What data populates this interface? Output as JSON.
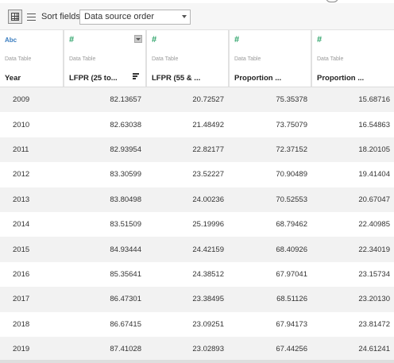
{
  "toolbar": {
    "sort_label": "Sort fields",
    "sort_value": "Data source order"
  },
  "columns": [
    {
      "type": "Abc",
      "source": "Data Table",
      "name": "Year"
    },
    {
      "type": "#",
      "source": "Data Table",
      "name": "LFPR (25 to..."
    },
    {
      "type": "#",
      "source": "Data Table",
      "name": "LFPR (55 & ..."
    },
    {
      "type": "#",
      "source": "Data Table",
      "name": "Proportion ..."
    },
    {
      "type": "#",
      "source": "Data Table",
      "name": "Proportion ..."
    }
  ],
  "rows": [
    [
      "2009",
      "82.13657",
      "20.72527",
      "75.35378",
      "15.68716"
    ],
    [
      "2010",
      "82.63038",
      "21.48492",
      "73.75079",
      "16.54863"
    ],
    [
      "2011",
      "82.93954",
      "22.82177",
      "72.37152",
      "18.20105"
    ],
    [
      "2012",
      "83.30599",
      "23.52227",
      "70.90489",
      "19.41404"
    ],
    [
      "2013",
      "83.80498",
      "24.00236",
      "70.52553",
      "20.67047"
    ],
    [
      "2014",
      "83.51509",
      "25.19996",
      "68.79462",
      "22.40985"
    ],
    [
      "2015",
      "84.93444",
      "24.42159",
      "68.40926",
      "22.34019"
    ],
    [
      "2016",
      "85.35641",
      "24.38512",
      "67.97041",
      "23.15734"
    ],
    [
      "2017",
      "86.47301",
      "23.38495",
      "68.51126",
      "23.20130"
    ],
    [
      "2018",
      "86.67415",
      "23.09251",
      "67.94173",
      "23.81472"
    ],
    [
      "2019",
      "87.41028",
      "23.02893",
      "67.44256",
      "24.61241"
    ]
  ]
}
